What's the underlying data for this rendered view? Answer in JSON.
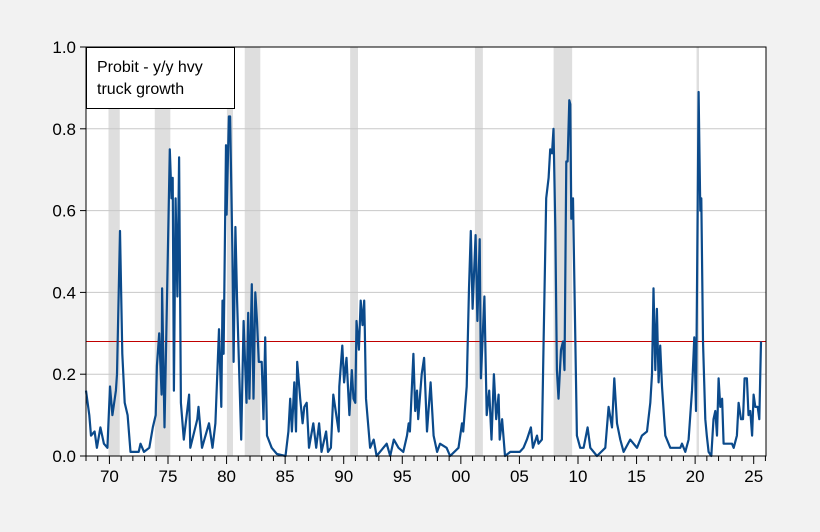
{
  "chart_data": {
    "type": "line",
    "title": "",
    "xlabel": "",
    "ylabel": "",
    "legend": {
      "lines": [
        "Probit - y/y hvy",
        "truck growth"
      ],
      "placement": "top-left"
    },
    "xlim": [
      1968.0,
      2026.05
    ],
    "ylim": [
      0.0,
      1.0
    ],
    "y_ticks": [
      0.0,
      0.2,
      0.4,
      0.6,
      0.8,
      1.0
    ],
    "y_tick_labels": [
      "0.0",
      "0.2",
      "0.4",
      "0.6",
      "0.8",
      "1.0"
    ],
    "x_ticks": [
      1970,
      1975,
      1980,
      1985,
      1990,
      1995,
      2000,
      2005,
      2010,
      2015,
      2020,
      2025
    ],
    "x_tick_labels": [
      "70",
      "75",
      "80",
      "85",
      "90",
      "95",
      "00",
      "05",
      "10",
      "15",
      "20",
      "25"
    ],
    "grid": "horizontal",
    "reference_line": {
      "value": 0.28,
      "color": "#c00000"
    },
    "recession_shading": [
      [
        1969.92,
        1970.88
      ],
      [
        1973.87,
        1975.2
      ],
      [
        1980.03,
        1980.55
      ],
      [
        1981.55,
        1982.88
      ],
      [
        1990.55,
        1991.22
      ],
      [
        2001.2,
        2001.88
      ],
      [
        2007.92,
        2009.5
      ],
      [
        2020.12,
        2020.33
      ]
    ],
    "colors": {
      "series": "#0b4a8b",
      "shading": "#dedede",
      "grid": "#c8c8c8",
      "background": "#f2f2f2"
    },
    "series": [
      {
        "x": [
          1968.0,
          1968.28,
          1968.43,
          1968.73,
          1968.93,
          1969.23,
          1969.53,
          1969.83,
          1970.05,
          1970.25,
          1970.55,
          1970.65,
          1970.9,
          1971.1,
          1971.3,
          1971.55,
          1971.8,
          1972.5,
          1972.65,
          1972.95,
          1973.4,
          1973.7,
          1973.95,
          1974.05,
          1974.25,
          1974.45,
          1974.5,
          1974.7,
          1974.9,
          1975.15,
          1975.3,
          1975.4,
          1975.5,
          1975.65,
          1975.8,
          1975.95,
          1976.1,
          1976.35,
          1976.8,
          1976.9,
          1977.5,
          1977.6,
          1977.9,
          1978.5,
          1978.8,
          1979.05,
          1979.35,
          1979.55,
          1979.65,
          1979.75,
          1979.95,
          1980.0,
          1980.2,
          1980.3,
          1980.5,
          1980.6,
          1980.75,
          1980.9,
          1981.05,
          1981.25,
          1981.45,
          1981.7,
          1981.85,
          1981.95,
          1982.15,
          1982.3,
          1982.45,
          1982.6,
          1982.75,
          1983.0,
          1983.15,
          1983.3,
          1983.45,
          1983.85,
          1984.3,
          1985.03,
          1985.28,
          1985.43,
          1985.58,
          1985.78,
          1985.93,
          1986.03,
          1986.29,
          1986.49,
          1986.64,
          1986.84,
          1987.04,
          1987.4,
          1987.65,
          1987.9,
          1988.1,
          1988.5,
          1988.66,
          1988.91,
          1989.11,
          1989.42,
          1989.57,
          1989.62,
          1989.88,
          1990.03,
          1990.24,
          1990.49,
          1990.69,
          1990.84,
          1990.99,
          1991.09,
          1991.3,
          1991.45,
          1991.6,
          1991.75,
          1991.8,
          1991.9,
          1992.05,
          1992.25,
          1992.56,
          1992.81,
          1993.67,
          1993.97,
          1994.28,
          1994.68,
          1995.09,
          1995.4,
          1995.55,
          1995.65,
          1995.95,
          1996.1,
          1996.26,
          1996.36,
          1996.66,
          1996.86,
          1997.11,
          1997.42,
          1997.67,
          1997.97,
          1998.22,
          1998.78,
          1999.08,
          1999.8,
          2000.1,
          2000.2,
          2000.5,
          2000.7,
          2000.85,
          2001.0,
          2001.26,
          2001.41,
          2001.61,
          2001.71,
          2002.01,
          2002.21,
          2002.42,
          2002.62,
          2002.82,
          2003.02,
          2003.22,
          2003.32,
          2003.52,
          2003.77,
          2004.22,
          2005.03,
          2005.35,
          2005.64,
          2005.98,
          2006.15,
          2006.5,
          2006.63,
          2006.92,
          2007.06,
          2007.29,
          2007.49,
          2007.63,
          2007.78,
          2007.91,
          2008.06,
          2008.2,
          2008.34,
          2008.55,
          2008.72,
          2008.85,
          2009.0,
          2009.11,
          2009.26,
          2009.34,
          2009.43,
          2009.57,
          2009.91,
          2010.19,
          2010.48,
          2010.82,
          2011.05,
          2011.62,
          2012.33,
          2012.61,
          2012.9,
          2013.1,
          2013.33,
          2013.61,
          2013.89,
          2014.46,
          2015.04,
          2015.46,
          2015.89,
          2016.17,
          2016.32,
          2016.45,
          2016.6,
          2016.74,
          2016.88,
          2017.02,
          2017.17,
          2017.45,
          2017.88,
          2018.45,
          2018.73,
          2018.88,
          2019.16,
          2019.44,
          2019.73,
          2019.93,
          2020.07,
          2020.3,
          2020.44,
          2020.53,
          2020.67,
          2020.87,
          2021.0,
          2021.15,
          2021.38,
          2021.57,
          2021.72,
          2021.87,
          2022.0,
          2022.15,
          2022.3,
          2022.43,
          2022.86,
          2023.15,
          2023.29,
          2023.57,
          2023.71,
          2023.92,
          2024.09,
          2024.22,
          2024.42,
          2024.56,
          2024.71,
          2024.86,
          2024.99,
          2025.14,
          2025.34,
          2025.48,
          2025.62
        ],
        "y": [
          0.16,
          0.1,
          0.05,
          0.06,
          0.02,
          0.07,
          0.03,
          0.02,
          0.17,
          0.1,
          0.16,
          0.2,
          0.55,
          0.25,
          0.13,
          0.1,
          0.01,
          0.01,
          0.03,
          0.01,
          0.02,
          0.07,
          0.1,
          0.22,
          0.3,
          0.15,
          0.41,
          0.07,
          0.36,
          0.75,
          0.63,
          0.68,
          0.16,
          0.63,
          0.39,
          0.73,
          0.13,
          0.04,
          0.15,
          0.02,
          0.09,
          0.12,
          0.02,
          0.08,
          0.02,
          0.08,
          0.31,
          0.12,
          0.38,
          0.25,
          0.76,
          0.59,
          0.83,
          0.83,
          0.5,
          0.23,
          0.56,
          0.38,
          0.23,
          0.04,
          0.33,
          0.13,
          0.35,
          0.14,
          0.42,
          0.14,
          0.4,
          0.33,
          0.23,
          0.23,
          0.09,
          0.29,
          0.05,
          0.02,
          0.005,
          0.0,
          0.06,
          0.14,
          0.06,
          0.18,
          0.06,
          0.23,
          0.14,
          0.08,
          0.12,
          0.13,
          0.02,
          0.08,
          0.02,
          0.08,
          0.01,
          0.06,
          0.01,
          0.02,
          0.15,
          0.09,
          0.06,
          0.17,
          0.27,
          0.18,
          0.24,
          0.1,
          0.21,
          0.14,
          0.13,
          0.33,
          0.26,
          0.38,
          0.32,
          0.38,
          0.31,
          0.14,
          0.09,
          0.02,
          0.04,
          0.0,
          0.03,
          0.0,
          0.04,
          0.02,
          0.01,
          0.05,
          0.08,
          0.06,
          0.25,
          0.11,
          0.16,
          0.09,
          0.2,
          0.24,
          0.06,
          0.18,
          0.05,
          0.01,
          0.03,
          0.02,
          0.0,
          0.02,
          0.08,
          0.06,
          0.17,
          0.41,
          0.55,
          0.36,
          0.54,
          0.33,
          0.53,
          0.19,
          0.39,
          0.1,
          0.16,
          0.04,
          0.2,
          0.09,
          0.15,
          0.04,
          0.09,
          0.0,
          0.01,
          0.01,
          0.02,
          0.04,
          0.07,
          0.02,
          0.05,
          0.03,
          0.04,
          0.28,
          0.63,
          0.68,
          0.75,
          0.74,
          0.8,
          0.56,
          0.21,
          0.14,
          0.26,
          0.28,
          0.21,
          0.72,
          0.72,
          0.87,
          0.86,
          0.58,
          0.63,
          0.05,
          0.02,
          0.02,
          0.07,
          0.02,
          0.0,
          0.02,
          0.12,
          0.07,
          0.19,
          0.08,
          0.04,
          0.01,
          0.04,
          0.02,
          0.05,
          0.06,
          0.13,
          0.2,
          0.41,
          0.21,
          0.36,
          0.18,
          0.27,
          0.17,
          0.05,
          0.02,
          0.02,
          0.02,
          0.03,
          0.01,
          0.04,
          0.16,
          0.29,
          0.11,
          0.89,
          0.6,
          0.63,
          0.28,
          0.09,
          0.05,
          0.01,
          0.0,
          0.09,
          0.11,
          0.05,
          0.19,
          0.12,
          0.14,
          0.03,
          0.03,
          0.03,
          0.02,
          0.05,
          0.13,
          0.09,
          0.09,
          0.19,
          0.19,
          0.1,
          0.11,
          0.05,
          0.15,
          0.12,
          0.12,
          0.09,
          0.28
        ]
      }
    ]
  }
}
